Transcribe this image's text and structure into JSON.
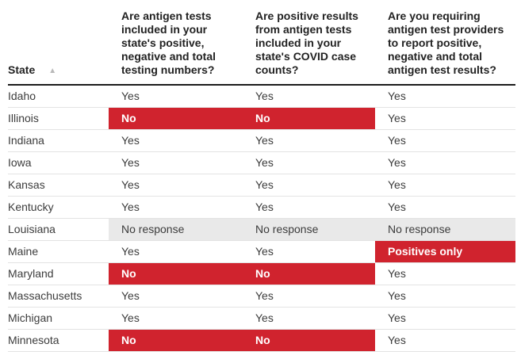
{
  "colors": {
    "highlight_red": "#d0232e",
    "no_response_gray": "#e9e9e9",
    "row_border": "#e3e3e3",
    "header_border": "#1c1c1c"
  },
  "icons": {
    "sort_ascending": "▲"
  },
  "chart_data": {
    "type": "table",
    "title": "",
    "sort": {
      "column": "State",
      "direction": "ascending"
    },
    "columns": [
      "State",
      "Are antigen tests included in your state's positive, negative and total testing numbers?",
      "Are positive results from antigen tests included in your state's COVID case counts?",
      "Are you requiring antigen test providers to report positive, negative and total antigen test results?"
    ],
    "rows": [
      {
        "state": "Idaho",
        "answers": [
          {
            "text": "Yes",
            "status": "yes"
          },
          {
            "text": "Yes",
            "status": "yes"
          },
          {
            "text": "Yes",
            "status": "yes"
          }
        ]
      },
      {
        "state": "Illinois",
        "answers": [
          {
            "text": "No",
            "status": "no"
          },
          {
            "text": "No",
            "status": "no"
          },
          {
            "text": "Yes",
            "status": "yes"
          }
        ]
      },
      {
        "state": "Indiana",
        "answers": [
          {
            "text": "Yes",
            "status": "yes"
          },
          {
            "text": "Yes",
            "status": "yes"
          },
          {
            "text": "Yes",
            "status": "yes"
          }
        ]
      },
      {
        "state": "Iowa",
        "answers": [
          {
            "text": "Yes",
            "status": "yes"
          },
          {
            "text": "Yes",
            "status": "yes"
          },
          {
            "text": "Yes",
            "status": "yes"
          }
        ]
      },
      {
        "state": "Kansas",
        "answers": [
          {
            "text": "Yes",
            "status": "yes"
          },
          {
            "text": "Yes",
            "status": "yes"
          },
          {
            "text": "Yes",
            "status": "yes"
          }
        ]
      },
      {
        "state": "Kentucky",
        "answers": [
          {
            "text": "Yes",
            "status": "yes"
          },
          {
            "text": "Yes",
            "status": "yes"
          },
          {
            "text": "Yes",
            "status": "yes"
          }
        ]
      },
      {
        "state": "Louisiana",
        "answers": [
          {
            "text": "No response",
            "status": "noresponse"
          },
          {
            "text": "No response",
            "status": "noresponse"
          },
          {
            "text": "No response",
            "status": "noresponse"
          }
        ]
      },
      {
        "state": "Maine",
        "answers": [
          {
            "text": "Yes",
            "status": "yes"
          },
          {
            "text": "Yes",
            "status": "yes"
          },
          {
            "text": "Positives only",
            "status": "positivesonly"
          }
        ]
      },
      {
        "state": "Maryland",
        "answers": [
          {
            "text": "No",
            "status": "no"
          },
          {
            "text": "No",
            "status": "no"
          },
          {
            "text": "Yes",
            "status": "yes"
          }
        ]
      },
      {
        "state": "Massachusetts",
        "answers": [
          {
            "text": "Yes",
            "status": "yes"
          },
          {
            "text": "Yes",
            "status": "yes"
          },
          {
            "text": "Yes",
            "status": "yes"
          }
        ]
      },
      {
        "state": "Michigan",
        "answers": [
          {
            "text": "Yes",
            "status": "yes"
          },
          {
            "text": "Yes",
            "status": "yes"
          },
          {
            "text": "Yes",
            "status": "yes"
          }
        ]
      },
      {
        "state": "Minnesota",
        "answers": [
          {
            "text": "No",
            "status": "no"
          },
          {
            "text": "No",
            "status": "no"
          },
          {
            "text": "Yes",
            "status": "yes"
          }
        ]
      }
    ]
  }
}
